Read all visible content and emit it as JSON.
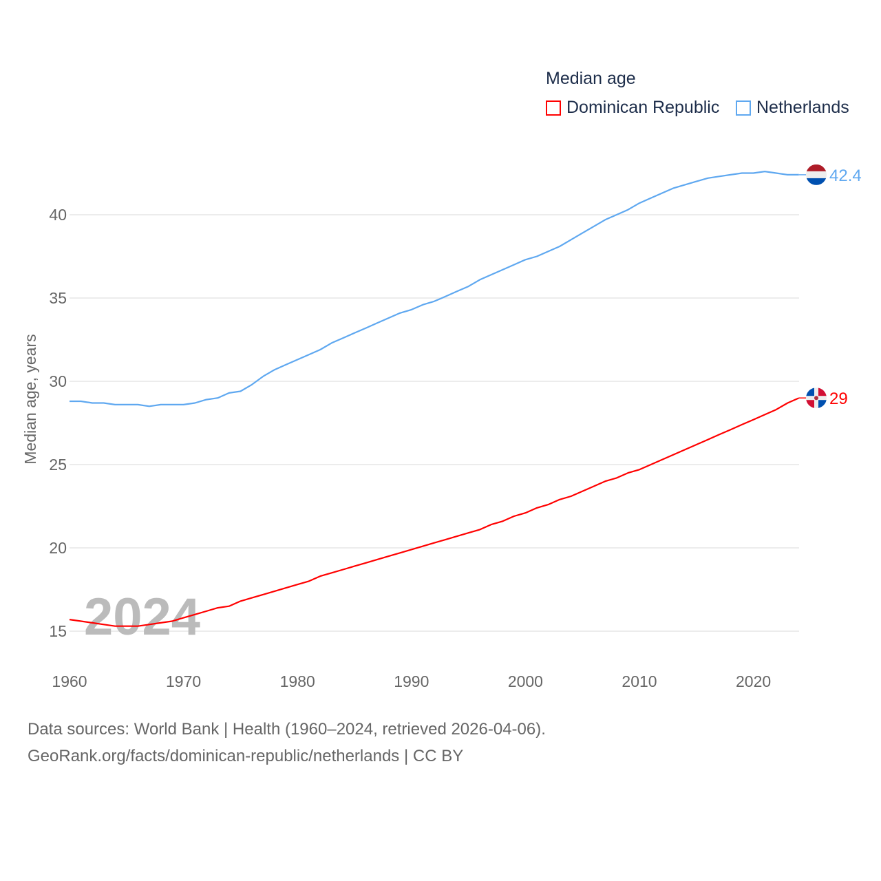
{
  "chart_data": {
    "type": "line",
    "title": "",
    "xlabel": "",
    "ylabel": "Median age, years",
    "xlim": [
      1960,
      2024
    ],
    "ylim": [
      13,
      43.5
    ],
    "yticks": [
      15,
      20,
      25,
      30,
      35,
      40
    ],
    "xticks": [
      1960,
      1970,
      1980,
      1990,
      2000,
      2010,
      2020
    ],
    "grid": true,
    "legend": {
      "title": "Median age",
      "placement": "top-right"
    },
    "year_watermark": "2024",
    "x": [
      1960,
      1961,
      1962,
      1963,
      1964,
      1965,
      1966,
      1967,
      1968,
      1969,
      1970,
      1971,
      1972,
      1973,
      1974,
      1975,
      1976,
      1977,
      1978,
      1979,
      1980,
      1981,
      1982,
      1983,
      1984,
      1985,
      1986,
      1987,
      1988,
      1989,
      1990,
      1991,
      1992,
      1993,
      1994,
      1995,
      1996,
      1997,
      1998,
      1999,
      2000,
      2001,
      2002,
      2003,
      2004,
      2005,
      2006,
      2007,
      2008,
      2009,
      2010,
      2011,
      2012,
      2013,
      2014,
      2015,
      2016,
      2017,
      2018,
      2019,
      2020,
      2021,
      2022,
      2023,
      2024
    ],
    "series": [
      {
        "name": "Dominican Republic",
        "color": "#ff0000",
        "end_label": "29",
        "values": [
          15.7,
          15.6,
          15.5,
          15.4,
          15.3,
          15.3,
          15.3,
          15.4,
          15.5,
          15.6,
          15.8,
          16.0,
          16.2,
          16.4,
          16.5,
          16.8,
          17.0,
          17.2,
          17.4,
          17.6,
          17.8,
          18.0,
          18.3,
          18.5,
          18.7,
          18.9,
          19.1,
          19.3,
          19.5,
          19.7,
          19.9,
          20.1,
          20.3,
          20.5,
          20.7,
          20.9,
          21.1,
          21.4,
          21.6,
          21.9,
          22.1,
          22.4,
          22.6,
          22.9,
          23.1,
          23.4,
          23.7,
          24.0,
          24.2,
          24.5,
          24.7,
          25.0,
          25.3,
          25.6,
          25.9,
          26.2,
          26.5,
          26.8,
          27.1,
          27.4,
          27.7,
          28.0,
          28.3,
          28.7,
          29.0
        ]
      },
      {
        "name": "Netherlands",
        "color": "#5fa8f0",
        "end_label": "42.4",
        "values": [
          28.8,
          28.8,
          28.7,
          28.7,
          28.6,
          28.6,
          28.6,
          28.5,
          28.6,
          28.6,
          28.6,
          28.7,
          28.9,
          29.0,
          29.3,
          29.4,
          29.8,
          30.3,
          30.7,
          31.0,
          31.3,
          31.6,
          31.9,
          32.3,
          32.6,
          32.9,
          33.2,
          33.5,
          33.8,
          34.1,
          34.3,
          34.6,
          34.8,
          35.1,
          35.4,
          35.7,
          36.1,
          36.4,
          36.7,
          37.0,
          37.3,
          37.5,
          37.8,
          38.1,
          38.5,
          38.9,
          39.3,
          39.7,
          40.0,
          40.3,
          40.7,
          41.0,
          41.3,
          41.6,
          41.8,
          42.0,
          42.2,
          42.3,
          42.4,
          42.5,
          42.5,
          42.6,
          42.5,
          42.4,
          42.4
        ]
      }
    ]
  },
  "footer": {
    "line1": "Data sources: World Bank | Health (1960–2024, retrieved 2026-04-06).",
    "line2": "GeoRank.org/facts/dominican-republic/netherlands | CC BY"
  }
}
